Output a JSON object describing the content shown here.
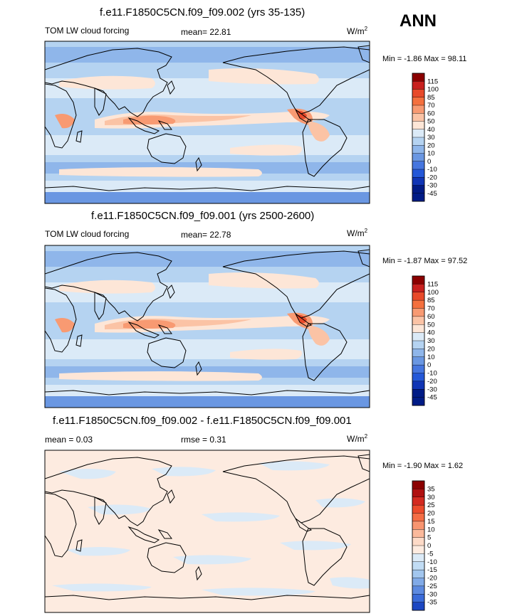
{
  "season": "ANN",
  "colorbar_colors_main": [
    "#8b0000",
    "#c8201e",
    "#e84a2a",
    "#f4703e",
    "#f89a72",
    "#fbc3a5",
    "#fde6d7",
    "#dbeaf7",
    "#b5d3f1",
    "#8fb6ea",
    "#6a97e2",
    "#4676df",
    "#2458d8",
    "#1035b5",
    "#001b86"
  ],
  "colorbar_colors_diff": [
    "#8b0000",
    "#b01010",
    "#d42a20",
    "#ec4b2c",
    "#f46d45",
    "#f89570",
    "#fbb99b",
    "#fddac7",
    "#fdebe0",
    "#dbeaf7",
    "#c1dcf4",
    "#a2c6ee",
    "#81aae7",
    "#5d8ae0",
    "#3a6bd9",
    "#1c47c2",
    "#0a2c9f",
    "#001b86"
  ],
  "chart_data": [
    {
      "type": "heatmap",
      "title": "f.e11.F1850C5CN.f09_f09.002 (yrs 35-135)",
      "left_label": "TOM LW cloud forcing",
      "center_label": "mean=  22.81",
      "units": "W/m",
      "units_sup": "2",
      "minmax_text": "Min =  -1.86 Max =  98.11",
      "min": -1.86,
      "max": 98.11,
      "mean": 22.81,
      "colorbar_levels": [
        "115",
        "100",
        "85",
        "70",
        "60",
        "50",
        "40",
        "30",
        "20",
        "10",
        "0",
        "-10",
        "-20",
        "-30",
        "-45"
      ]
    },
    {
      "type": "heatmap",
      "title": "f.e11.F1850C5CN.f09_f09.001 (yrs 2500-2600)",
      "left_label": "TOM LW cloud forcing",
      "center_label": "mean=  22.78",
      "units": "W/m",
      "units_sup": "2",
      "minmax_text": "Min =  -1.87 Max =  97.52",
      "min": -1.87,
      "max": 97.52,
      "mean": 22.78,
      "colorbar_levels": [
        "115",
        "100",
        "85",
        "70",
        "60",
        "50",
        "40",
        "30",
        "20",
        "10",
        "0",
        "-10",
        "-20",
        "-30",
        "-45"
      ]
    },
    {
      "type": "heatmap",
      "title": "f.e11.F1850C5CN.f09_f09.002 - f.e11.F1850C5CN.f09_f09.001",
      "left_label": "mean =   0.03",
      "center_label": "rmse =   0.31",
      "units": "W/m",
      "units_sup": "2",
      "minmax_text": "Min =  -1.90 Max =   1.62",
      "min": -1.9,
      "max": 1.62,
      "mean": 0.03,
      "rmse": 0.31,
      "colorbar_levels": [
        "35",
        "30",
        "25",
        "20",
        "15",
        "10",
        "5",
        "0",
        "-5",
        "-10",
        "-15",
        "-20",
        "-25",
        "-30",
        "-35"
      ]
    }
  ]
}
